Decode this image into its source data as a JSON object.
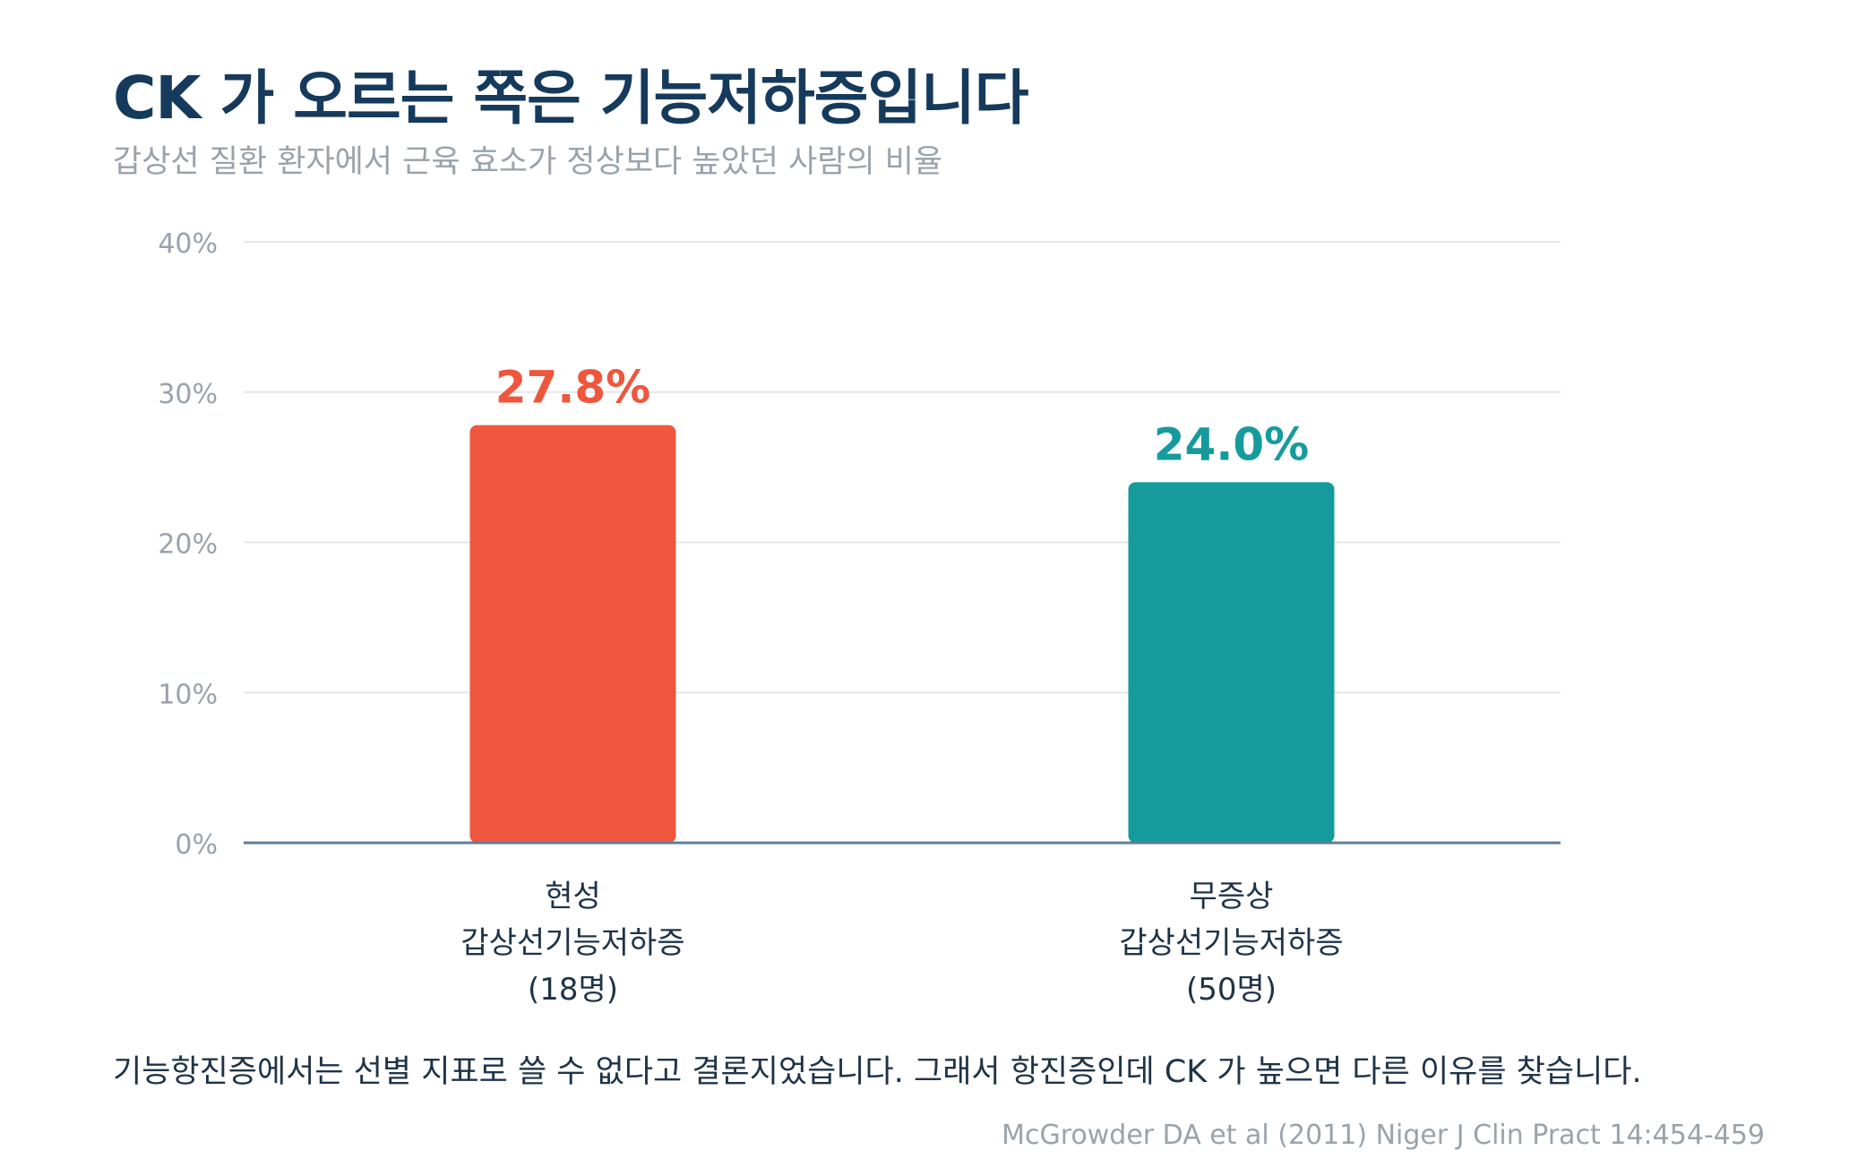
{
  "header": {
    "title": "CK 가 오르는 쪽은 기능저하증입니다",
    "subtitle": "갑상선 질환 환자에서 근육 효소가 정상보다 높았던 사람의 비율"
  },
  "chart_data": {
    "type": "bar",
    "categories": [
      [
        "현성",
        "갑상선기능저하증",
        "(18명)"
      ],
      [
        "무증상",
        "갑상선기능저하증",
        "(50명)"
      ]
    ],
    "values": [
      27.8,
      24.0
    ],
    "value_labels": [
      "27.8%",
      "24.0%"
    ],
    "colors": [
      "#ee573d",
      "#169b9c"
    ],
    "ylim": [
      0,
      40
    ],
    "yticks": [
      0,
      10,
      20,
      30,
      40
    ],
    "ytick_labels": [
      "0%",
      "10%",
      "20%",
      "30%",
      "40%"
    ],
    "grid": true,
    "xlabel": "",
    "ylabel": ""
  },
  "footer": {
    "note": "기능항진증에서는 선별 지표로 쓸 수 없다고 결론지었습니다. 그래서 항진증인데 CK 가 높으면 다른 이유를 찾습니다.",
    "source": "McGrowder DA et al (2011) Niger J Clin Pract 14:454-459"
  }
}
